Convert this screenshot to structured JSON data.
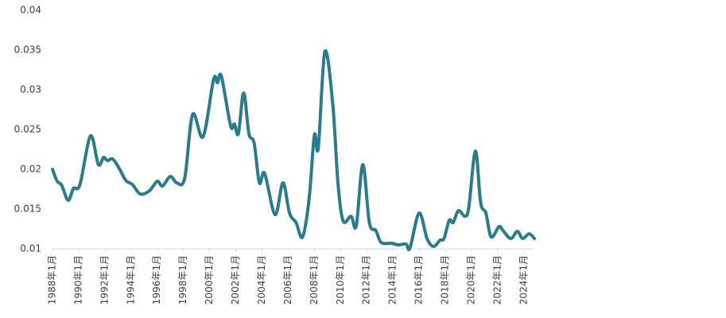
{
  "chart_data": {
    "type": "line",
    "x": [
      1988.0,
      1988.36,
      1988.7,
      1989.2,
      1989.6,
      1990.1,
      1990.9,
      1991.5,
      1991.9,
      1992.2,
      1992.6,
      1993.1,
      1993.6,
      1994.1,
      1994.7,
      1995.4,
      1996.0,
      1996.4,
      1997.0,
      1997.5,
      1998.1,
      1998.7,
      1999.5,
      2000.3,
      2000.6,
      2000.9,
      2001.6,
      2001.9,
      2002.2,
      2002.6,
      2003.0,
      2003.4,
      2003.8,
      2004.2,
      2005.0,
      2005.6,
      2006.1,
      2006.6,
      2007.1,
      2007.6,
      2008.0,
      2008.3,
      2008.8,
      2009.4,
      2009.8,
      2010.2,
      2010.8,
      2011.2,
      2011.7,
      2012.2,
      2012.7,
      2013.1,
      2013.9,
      2014.4,
      2015.0,
      2015.3,
      2016.0,
      2016.6,
      2017.1,
      2017.6,
      2017.9,
      2018.3,
      2018.6,
      2019.0,
      2019.5,
      2019.8,
      2020.3,
      2020.7,
      2021.1,
      2021.5,
      2022.1,
      2022.4,
      2023.0,
      2023.5,
      2023.9,
      2024.4,
      2024.8
    ],
    "series": [
      {
        "color": "#2b7b8b",
        "values": [
          0.02,
          0.0185,
          0.018,
          0.0161,
          0.0176,
          0.0181,
          0.0242,
          0.0206,
          0.0215,
          0.0211,
          0.0213,
          0.0201,
          0.0186,
          0.0181,
          0.0169,
          0.0173,
          0.0185,
          0.0179,
          0.0191,
          0.0183,
          0.0189,
          0.0269,
          0.0241,
          0.0313,
          0.0309,
          0.0317,
          0.0255,
          0.0257,
          0.0245,
          0.0296,
          0.0245,
          0.0233,
          0.0183,
          0.0195,
          0.0143,
          0.0183,
          0.0145,
          0.0133,
          0.0115,
          0.0163,
          0.0243,
          0.0227,
          0.0348,
          0.0283,
          0.0183,
          0.0135,
          0.0141,
          0.0129,
          0.0206,
          0.0133,
          0.0123,
          0.0108,
          0.0107,
          0.0105,
          0.0106,
          0.0101,
          0.0145,
          0.0113,
          0.0103,
          0.0111,
          0.0113,
          0.0136,
          0.0133,
          0.0148,
          0.0141,
          0.0153,
          0.0223,
          0.0158,
          0.0145,
          0.0115,
          0.0128,
          0.0123,
          0.0113,
          0.0122,
          0.0113,
          0.0119,
          0.0113
        ]
      }
    ],
    "xlim": [
      1988.0,
      2024.8
    ],
    "xticks": [
      {
        "value": 1988,
        "label": "1988年1月"
      },
      {
        "value": 1990,
        "label": "1990年1月"
      },
      {
        "value": 1992,
        "label": "1992年1月"
      },
      {
        "value": 1994,
        "label": "1994年1月"
      },
      {
        "value": 1996,
        "label": "1996年1月"
      },
      {
        "value": 1998,
        "label": "1998年1月"
      },
      {
        "value": 2000,
        "label": "2000年1月"
      },
      {
        "value": 2002,
        "label": "2002年1月"
      },
      {
        "value": 2004,
        "label": "2004年1月"
      },
      {
        "value": 2006,
        "label": "2006年1月"
      },
      {
        "value": 2008,
        "label": "2008年1月"
      },
      {
        "value": 2010,
        "label": "2010年1月"
      },
      {
        "value": 2012,
        "label": "2012年1月"
      },
      {
        "value": 2014,
        "label": "2014年1月"
      },
      {
        "value": 2016,
        "label": "2016年1月"
      },
      {
        "value": 2018,
        "label": "2018年1月"
      },
      {
        "value": 2020,
        "label": "2020年1月"
      },
      {
        "value": 2022,
        "label": "2022年1月"
      },
      {
        "value": 2024,
        "label": "2024年1月"
      }
    ],
    "ylim": [
      0.01,
      0.04
    ],
    "yticks": [
      0.01,
      0.015,
      0.02,
      0.025,
      0.03,
      0.035,
      0.04
    ]
  }
}
